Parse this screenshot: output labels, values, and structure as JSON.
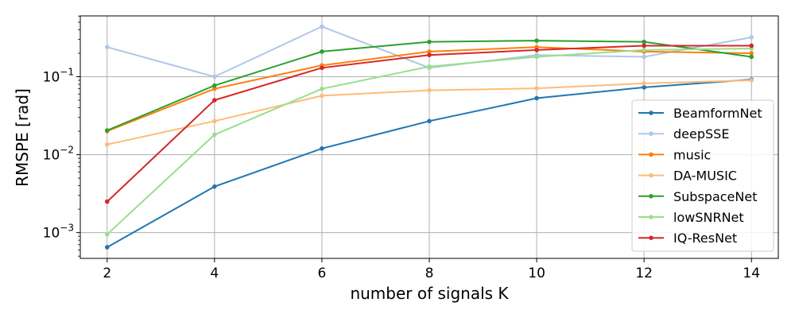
{
  "chart_data": {
    "type": "line",
    "title": "",
    "xlabel": "number of signals K",
    "ylabel": "RMSPE [rad]",
    "xlim": [
      1.5,
      14.5
    ],
    "ylim_log10": [
      -3.33,
      -0.22
    ],
    "yscale": "log",
    "grid": true,
    "legend_position": "right",
    "x_ticks": [
      2,
      4,
      6,
      8,
      10,
      12,
      14
    ],
    "x_tick_labels": [
      "2",
      "4",
      "6",
      "8",
      "10",
      "12",
      "14"
    ],
    "y_ticks": [
      0.001,
      0.01,
      0.1
    ],
    "y_tick_labels": [
      {
        "base": "10",
        "exp": "−3"
      },
      {
        "base": "10",
        "exp": "−2"
      },
      {
        "base": "10",
        "exp": "−1"
      }
    ],
    "x": [
      2,
      4,
      6,
      8,
      10,
      12,
      14
    ],
    "series": [
      {
        "name": "BeamformNet",
        "color": "#1f77b4",
        "values": [
          0.00065,
          0.0039,
          0.012,
          0.027,
          0.053,
          0.073,
          0.092
        ]
      },
      {
        "name": "deepSSE",
        "color": "#aec7e8",
        "values": [
          0.24,
          0.1,
          0.44,
          0.13,
          0.19,
          0.18,
          0.32
        ]
      },
      {
        "name": "music",
        "color": "#ff7f0e",
        "values": [
          0.02,
          0.07,
          0.14,
          0.21,
          0.24,
          0.21,
          0.2
        ]
      },
      {
        "name": "DA-MUSIC",
        "color": "#ffbb78",
        "values": [
          0.0135,
          0.027,
          0.057,
          0.067,
          0.071,
          0.082,
          0.09
        ]
      },
      {
        "name": "SubspaceNet",
        "color": "#2ca02c",
        "values": [
          0.0205,
          0.077,
          0.21,
          0.28,
          0.29,
          0.28,
          0.18
        ]
      },
      {
        "name": "lowSNRNet",
        "color": "#98df8a",
        "values": [
          0.00095,
          0.018,
          0.07,
          0.135,
          0.18,
          0.22,
          0.23
        ]
      },
      {
        "name": "IQ-ResNet",
        "color": "#d62728",
        "values": [
          0.0025,
          0.05,
          0.13,
          0.19,
          0.22,
          0.25,
          0.25
        ]
      }
    ]
  }
}
